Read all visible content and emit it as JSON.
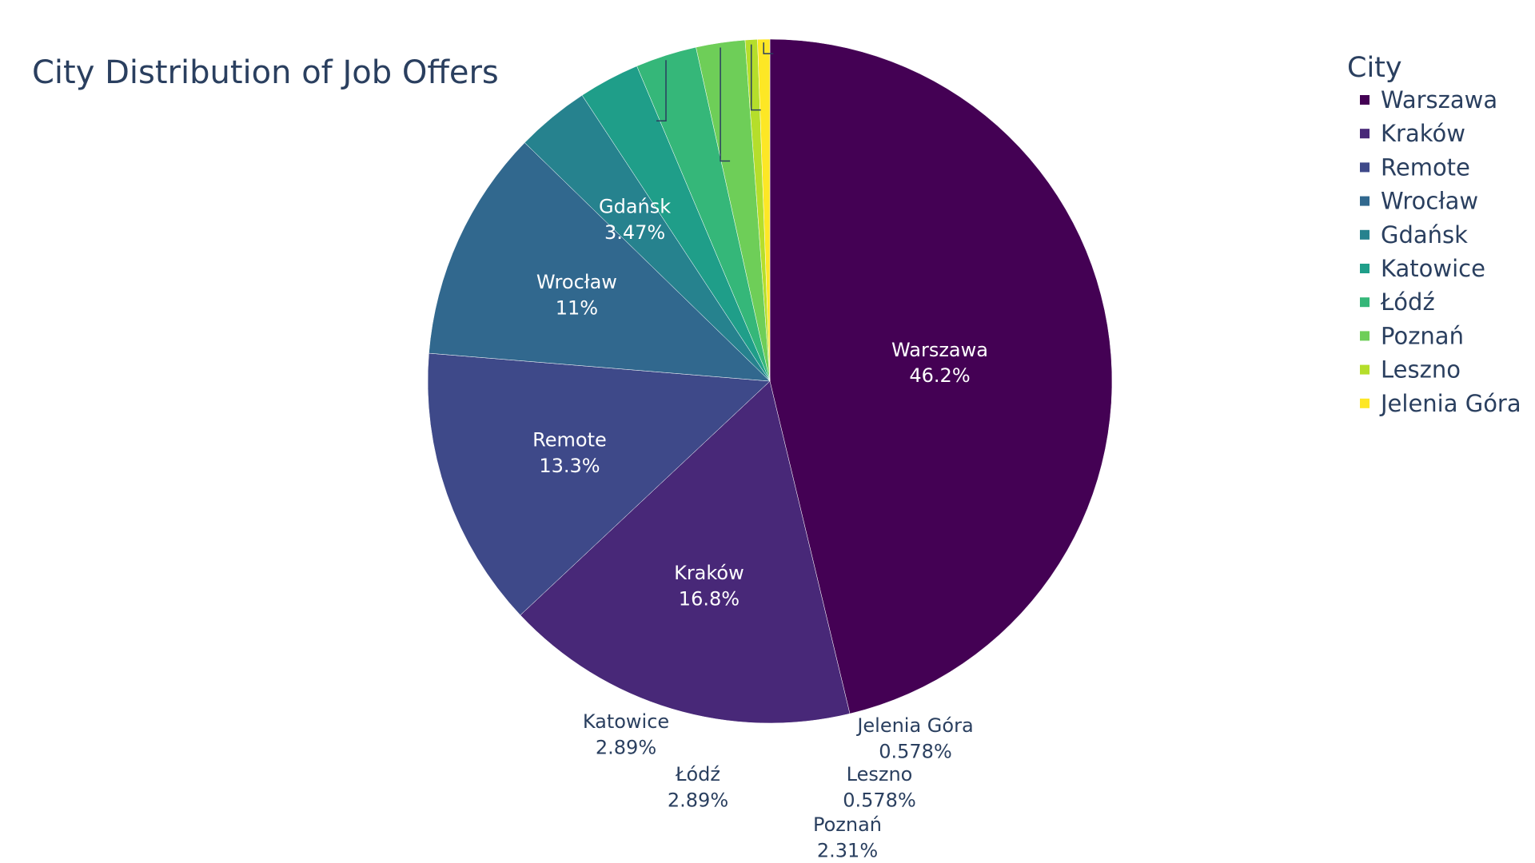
{
  "chart_data": {
    "type": "pie",
    "title": "City Distribution of Job Offers",
    "legend_title": "City",
    "legend_position": "right",
    "text_info": "label+percent",
    "slices": [
      {
        "label": "Warszawa",
        "percent": "46.2%",
        "value": 46.24,
        "color": "#440154",
        "text_position": "inside"
      },
      {
        "label": "Kraków",
        "percent": "16.8%",
        "value": 16.76,
        "color": "#482878",
        "text_position": "inside"
      },
      {
        "label": "Remote",
        "percent": "13.3%",
        "value": 13.29,
        "color": "#3e4989",
        "text_position": "inside"
      },
      {
        "label": "Wrocław",
        "percent": "11%",
        "value": 10.98,
        "color": "#31688e",
        "text_position": "inside"
      },
      {
        "label": "Gdańsk",
        "percent": "3.47%",
        "value": 3.47,
        "color": "#26828e",
        "text_position": "inside"
      },
      {
        "label": "Katowice",
        "percent": "2.89%",
        "value": 2.89,
        "color": "#1f9e89",
        "text_position": "outside"
      },
      {
        "label": "Łódź",
        "percent": "2.89%",
        "value": 2.89,
        "color": "#35b779",
        "text_position": "outside"
      },
      {
        "label": "Poznań",
        "percent": "2.31%",
        "value": 2.31,
        "color": "#6ece58",
        "text_position": "outside"
      },
      {
        "label": "Leszno",
        "percent": "0.578%",
        "value": 0.578,
        "color": "#b5de2b",
        "text_position": "outside"
      },
      {
        "label": "Jelenia Góra",
        "percent": "0.578%",
        "value": 0.578,
        "color": "#fde725",
        "text_position": "outside"
      }
    ]
  }
}
